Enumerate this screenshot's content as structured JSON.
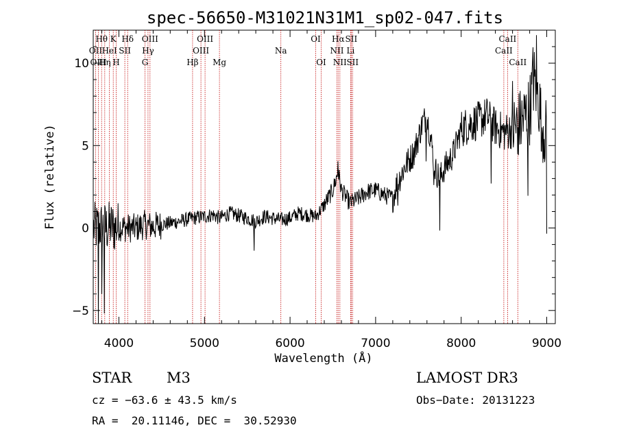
{
  "chart_data": {
    "type": "line",
    "title": "spec-56650-M31021N31M1_sp02-047.fits",
    "xlabel": "Wavelength (Å)",
    "ylabel": "Flux (relative)",
    "xlim": [
      3700,
      9100
    ],
    "ylim": [
      -5.8,
      12.0
    ],
    "x_ticks": [
      4000,
      5000,
      6000,
      7000,
      8000,
      9000
    ],
    "x_tick_labels": [
      "4000",
      "5000",
      "6000",
      "7000",
      "8000",
      "9000"
    ],
    "y_ticks": [
      -5,
      0,
      5,
      10
    ],
    "y_tick_labels": [
      "−5",
      "0",
      "5",
      "10"
    ],
    "grid": false,
    "spectrum_anchors": {
      "x": [
        3750,
        3800,
        3850,
        3900,
        3950,
        4000,
        4100,
        4200,
        4300,
        4400,
        4500,
        4700,
        4861,
        5000,
        5100,
        5175,
        5300,
        5500,
        5600,
        5700,
        5890,
        6000,
        6100,
        6200,
        6300,
        6400,
        6500,
        6563,
        6600,
        6700,
        6800,
        6900,
        7000,
        7100,
        7200,
        7250,
        7350,
        7450,
        7550,
        7600,
        7650,
        7700,
        7750,
        7800,
        7900,
        8000,
        8100,
        8200,
        8300,
        8400,
        8500,
        8600,
        8700,
        8800,
        8850,
        8900,
        8950,
        9000
      ],
      "y": [
        0.0,
        0.1,
        0.0,
        0.1,
        0.0,
        0.1,
        0.0,
        0.0,
        0.2,
        0.1,
        0.2,
        0.4,
        0.6,
        0.7,
        0.8,
        0.6,
        0.9,
        0.6,
        0.4,
        0.7,
        0.5,
        0.6,
        0.9,
        0.8,
        0.7,
        1.4,
        2.3,
        3.4,
        2.3,
        1.5,
        1.8,
        2.2,
        2.3,
        2.0,
        1.8,
        2.7,
        3.8,
        4.6,
        6.4,
        6.8,
        5.2,
        3.5,
        3.0,
        3.6,
        4.4,
        6.0,
        6.3,
        6.5,
        6.8,
        6.1,
        5.8,
        6.0,
        6.4,
        7.2,
        9.0,
        8.0,
        6.2,
        5.6
      ]
    },
    "spectral_lines": [
      {
        "label": "Hθ",
        "wavelength": 3798,
        "row": 1
      },
      {
        "label": "OII",
        "wavelength": 3727,
        "row": 2
      },
      {
        "label": "HeI",
        "wavelength": 3889,
        "row": 2
      },
      {
        "label": "OIII",
        "wavelength": 3760,
        "row": 3
      },
      {
        "label": "Hη",
        "wavelength": 3835,
        "row": 3
      },
      {
        "label": "K",
        "wavelength": 3934,
        "row": 1
      },
      {
        "label": "SII",
        "wavelength": 4069,
        "row": 2
      },
      {
        "label": "H",
        "wavelength": 3968,
        "row": 3
      },
      {
        "label": "Hδ",
        "wavelength": 4102,
        "row": 1
      },
      {
        "label": "OIII",
        "wavelength": 4363,
        "row": 1
      },
      {
        "label": "Hγ",
        "wavelength": 4340,
        "row": 2
      },
      {
        "label": "G",
        "wavelength": 4305,
        "row": 3
      },
      {
        "label": "OIII",
        "wavelength": 5007,
        "row": 1
      },
      {
        "label": "OIII",
        "wavelength": 4959,
        "row": 2
      },
      {
        "label": "Hβ",
        "wavelength": 4861,
        "row": 3
      },
      {
        "label": "Mg",
        "wavelength": 5175,
        "row": 3
      },
      {
        "label": "Na",
        "wavelength": 5893,
        "row": 2
      },
      {
        "label": "OI",
        "wavelength": 6300,
        "row": 1
      },
      {
        "label": "OI",
        "wavelength": 6364,
        "row": 3
      },
      {
        "label": "Hα",
        "wavelength": 6563,
        "row": 1
      },
      {
        "label": "NII",
        "wavelength": 6548,
        "row": 2
      },
      {
        "label": "NII",
        "wavelength": 6583,
        "row": 3
      },
      {
        "label": "SII",
        "wavelength": 6716,
        "row": 1
      },
      {
        "label": "Li",
        "wavelength": 6708,
        "row": 2
      },
      {
        "label": "SII",
        "wavelength": 6731,
        "row": 3
      },
      {
        "label": "CaII",
        "wavelength": 8542,
        "row": 1
      },
      {
        "label": "CaII",
        "wavelength": 8498,
        "row": 2
      },
      {
        "label": "CaII",
        "wavelength": 8662,
        "row": 3
      }
    ]
  },
  "info": {
    "object_type": "STAR",
    "subclass": "M3",
    "survey": "LAMOST DR3",
    "cz": "cz = −63.6 ± 43.5 km/s",
    "obs_date": "Obs−Date: 20131223",
    "coords": "RA =  20.11146, DEC =  30.52930"
  },
  "colors": {
    "line_marker": "#c00000",
    "spectrum": "#000000",
    "axes": "#000000"
  }
}
